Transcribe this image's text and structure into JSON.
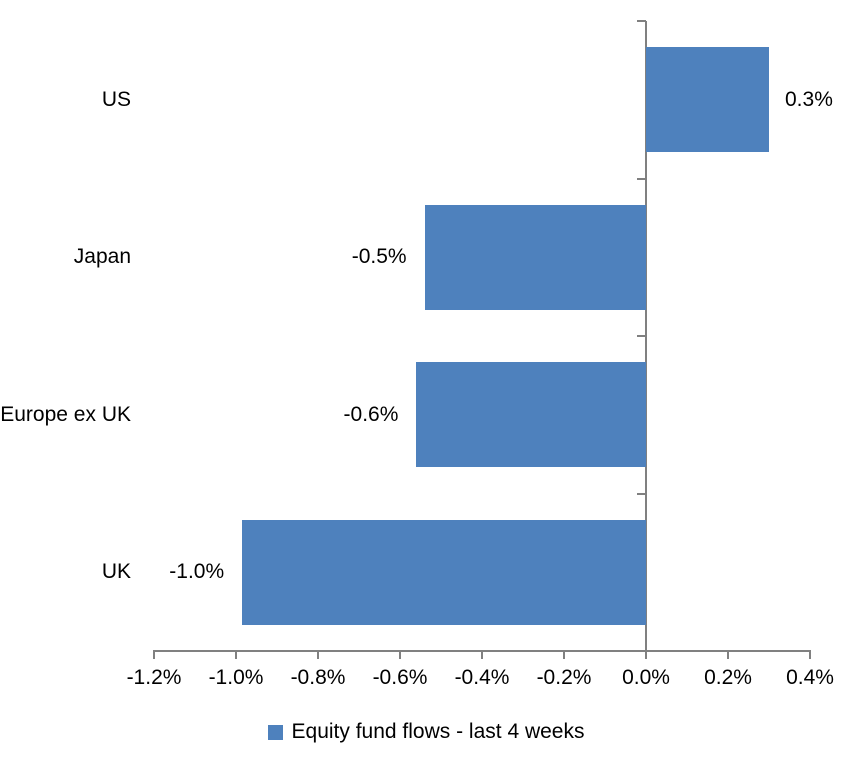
{
  "chart_data": {
    "type": "bar",
    "orientation": "horizontal",
    "title": "",
    "categories": [
      "US",
      "Japan",
      "Europe ex UK",
      "UK"
    ],
    "values": [
      0.3,
      -0.5,
      -0.6,
      -1.0
    ],
    "value_labels": [
      "0.3%",
      "-0.5%",
      "-0.6%",
      "-1.0%"
    ],
    "bar_plot_values": [
      0.3,
      -0.54,
      -0.56,
      -0.985
    ],
    "x_tick_labels": [
      "-1.2%",
      "-1.0%",
      "-0.8%",
      "-0.6%",
      "-0.4%",
      "-0.2%",
      "0.0%",
      "0.2%",
      "0.4%"
    ],
    "x_tick_values": [
      -1.2,
      -1.0,
      -0.8,
      -0.6,
      -0.4,
      -0.2,
      0,
      0.2,
      0.4
    ],
    "xlim": [
      -1.2,
      0.4
    ],
    "unit": "%",
    "grid": false,
    "zero_baseline_shown": true,
    "legend": {
      "label": "Equity fund flows - last 4 weeks",
      "position": "bottom"
    },
    "colors": {
      "bar": "#4E81BD",
      "axis": "#808080",
      "text": "#000000",
      "background": "#FFFFFF"
    }
  }
}
